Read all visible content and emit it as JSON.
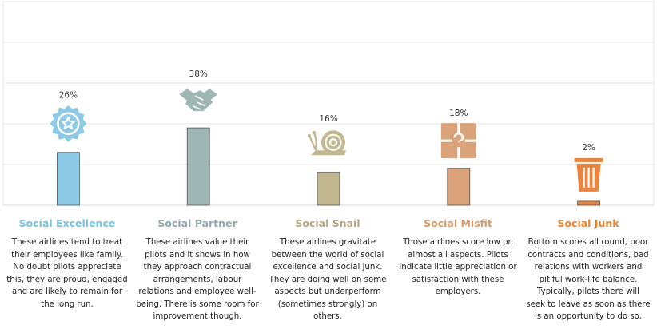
{
  "chart_data": {
    "type": "bar",
    "categories": [
      "Social Excellence",
      "Social Partner",
      "Social Snail",
      "Social Misfit",
      "Social Junk"
    ],
    "values": [
      26,
      38,
      16,
      18,
      2
    ],
    "value_labels": [
      "26%",
      "38%",
      "16%",
      "18%",
      "2%"
    ],
    "ylim": [
      0,
      100
    ],
    "grid": true,
    "colors": [
      "#8ecae6",
      "#9fb7b4",
      "#c2b78f",
      "#dba37a",
      "#e9853f"
    ],
    "title_colors": [
      "#7cc0e0",
      "#8fa9a8",
      "#b3a680",
      "#d89a6c",
      "#e8842f"
    ],
    "icons": [
      "award-badge-icon",
      "handshake-icon",
      "snail-icon",
      "puzzle-icon",
      "trash-bin-icon"
    ]
  },
  "segments": [
    {
      "name": "Social Excellence",
      "description": [
        "These airlines tend to treat",
        "their employees like family.",
        "No doubt pilots appreciate",
        "this, they are proud, engaged",
        "and are likely to remain for",
        "the long run."
      ]
    },
    {
      "name": "Social Partner",
      "description": [
        "These airlines value their",
        "pilots and it shows in how",
        "they approach contractual",
        "arrangements, labour",
        "relations and employee well-",
        "being. There is some room for",
        "improvement though."
      ]
    },
    {
      "name": "Social Snail",
      "description": [
        "These airlines gravitate",
        "between the world of social",
        "excellence and social junk.",
        "They are doing well on some",
        "aspects but underperform",
        "(sometimes strongly) on",
        "others."
      ]
    },
    {
      "name": "Social Misfit",
      "description": [
        "Those airlines score low on",
        "almost all aspects. Pilots",
        "indicate little appreciation or",
        "satisfaction with these",
        "employers."
      ]
    },
    {
      "name": "Social Junk",
      "description": [
        "Bottom scores all round, poor",
        "contracts and conditions, bad",
        "relations with workers and",
        "pitiful work-life balance.",
        "Typically, pilots there will",
        "seek to leave as soon as there",
        "is an opportunity to do so."
      ]
    }
  ]
}
